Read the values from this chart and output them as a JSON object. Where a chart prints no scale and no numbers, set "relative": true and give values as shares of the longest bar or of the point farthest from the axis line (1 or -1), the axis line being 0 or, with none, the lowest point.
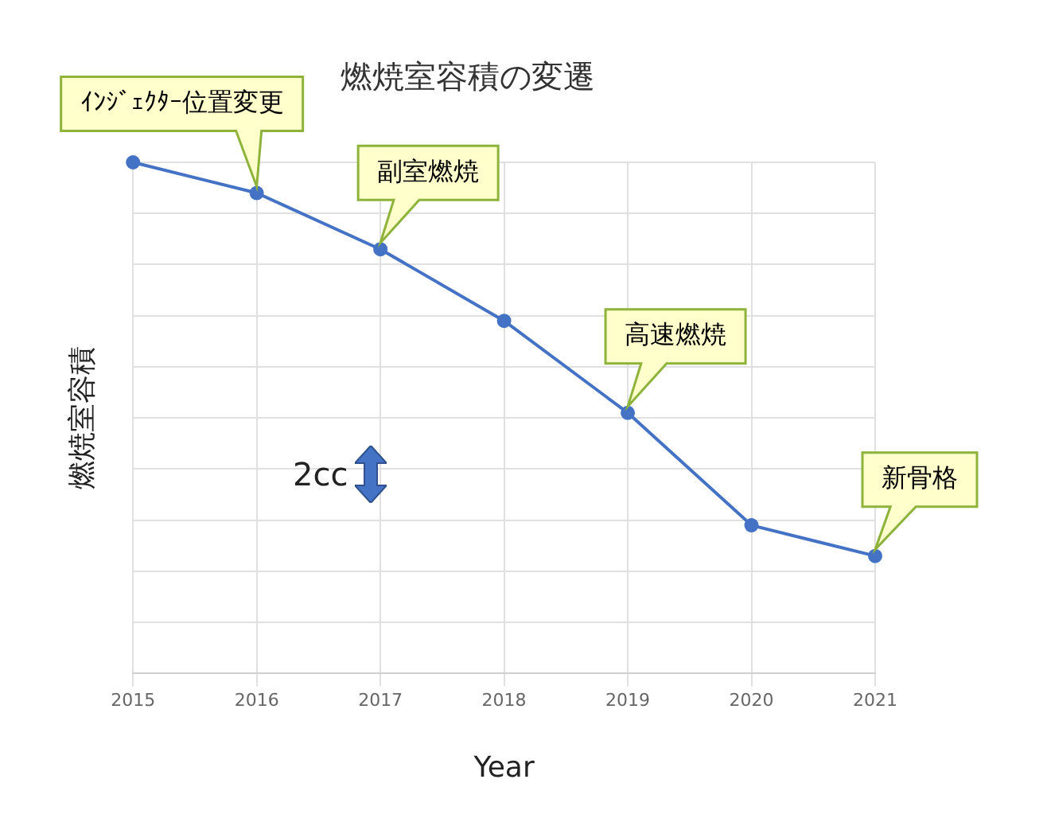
{
  "chart_data": {
    "type": "line",
    "title": "燃焼室容積の変遷",
    "xlabel": "Year",
    "ylabel": "燃焼室容積",
    "categories": [
      "2015",
      "2016",
      "2017",
      "2018",
      "2019",
      "2020",
      "2021"
    ],
    "series": [
      {
        "color": "#4472c4",
        "values": [
          1,
          0.94,
          0.83,
          0.69,
          0.51,
          0.29,
          0.23
        ]
      }
    ],
    "relative": true,
    "grid": true,
    "legend": false,
    "marker": "circle",
    "line_style": "solid",
    "annotations": [
      {
        "text": "ｲﾝｼﾞｪｸﾀｰ位置変更",
        "x": "2016",
        "y": 0.94
      },
      {
        "text": "副室燃焼",
        "x": "2017",
        "y": 0.83
      },
      {
        "text": "高速燃焼",
        "x": "2019",
        "y": 0.51
      },
      {
        "text": "新骨格",
        "x": "2021",
        "y": 0.23
      },
      "2cc"
    ]
  }
}
